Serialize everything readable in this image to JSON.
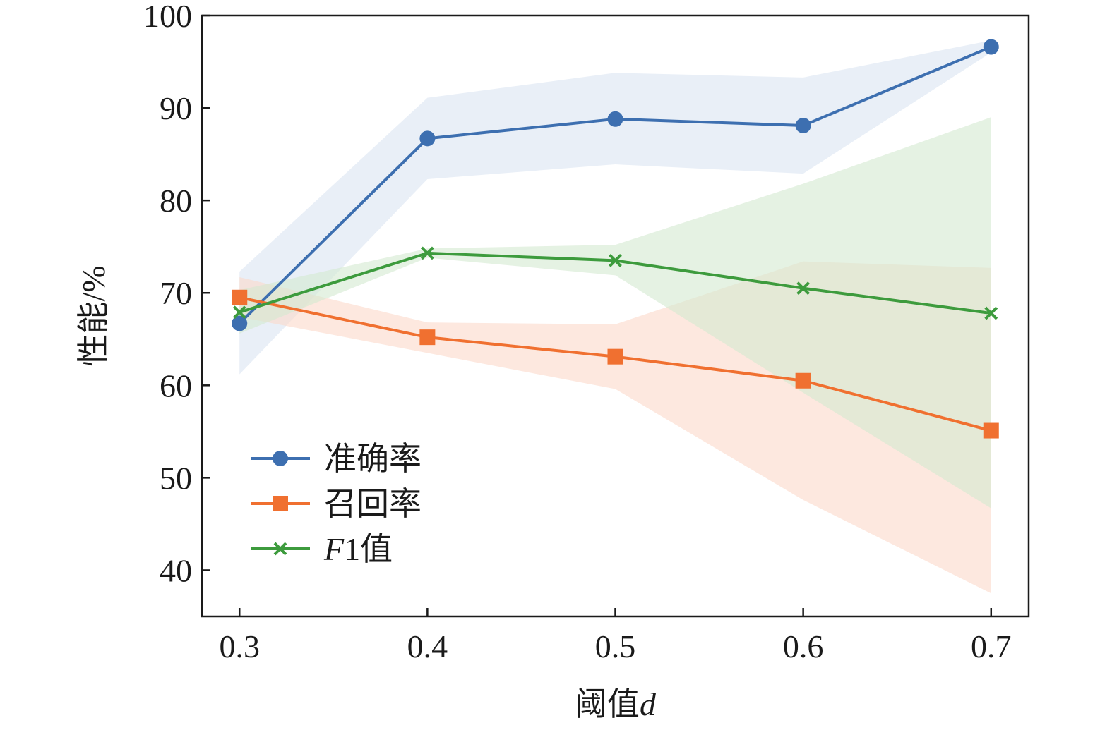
{
  "chart_data": {
    "type": "line",
    "x": [
      0.3,
      0.4,
      0.5,
      0.6,
      0.7
    ],
    "x_tick_labels": [
      "0.3",
      "0.4",
      "0.5",
      "0.6",
      "0.7"
    ],
    "xlabel": "阈值",
    "xlabel_var": "d",
    "ylabel": "性能/%",
    "xlim": [
      0.28,
      0.72
    ],
    "ylim": [
      35,
      100
    ],
    "yticks": [
      40,
      50,
      60,
      70,
      80,
      90,
      100
    ],
    "y_tick_labels": [
      "40",
      "50",
      "60",
      "70",
      "80",
      "90",
      "100"
    ],
    "grid": false,
    "legend_position": "lower-left",
    "series": [
      {
        "name": "准确率",
        "color": "#3d6fb0",
        "band_color": "#dbe5f2",
        "marker": "circle",
        "values": [
          66.7,
          86.7,
          88.8,
          88.1,
          96.6
        ],
        "lower": [
          61.2,
          82.3,
          83.9,
          82.9,
          96.0
        ],
        "upper": [
          72.3,
          91.1,
          93.8,
          93.3,
          97.3
        ]
      },
      {
        "name": "召回率",
        "color": "#f07030",
        "band_color": "#fbd9c9",
        "marker": "square",
        "values": [
          69.5,
          65.2,
          63.1,
          60.5,
          55.1
        ],
        "lower": [
          67.4,
          63.5,
          59.6,
          47.6,
          37.5
        ],
        "upper": [
          71.7,
          66.8,
          66.6,
          73.4,
          72.7
        ]
      },
      {
        "name": "F1值",
        "name_italic": "F",
        "name_rest": "1值",
        "color": "#3d9b3d",
        "band_color": "#d3e9d0",
        "marker": "x",
        "values": [
          67.9,
          74.3,
          73.5,
          70.5,
          67.8
        ],
        "lower": [
          65.6,
          73.8,
          71.9,
          59.2,
          46.7
        ],
        "upper": [
          70.3,
          74.8,
          75.2,
          81.8,
          89.0
        ]
      }
    ]
  }
}
